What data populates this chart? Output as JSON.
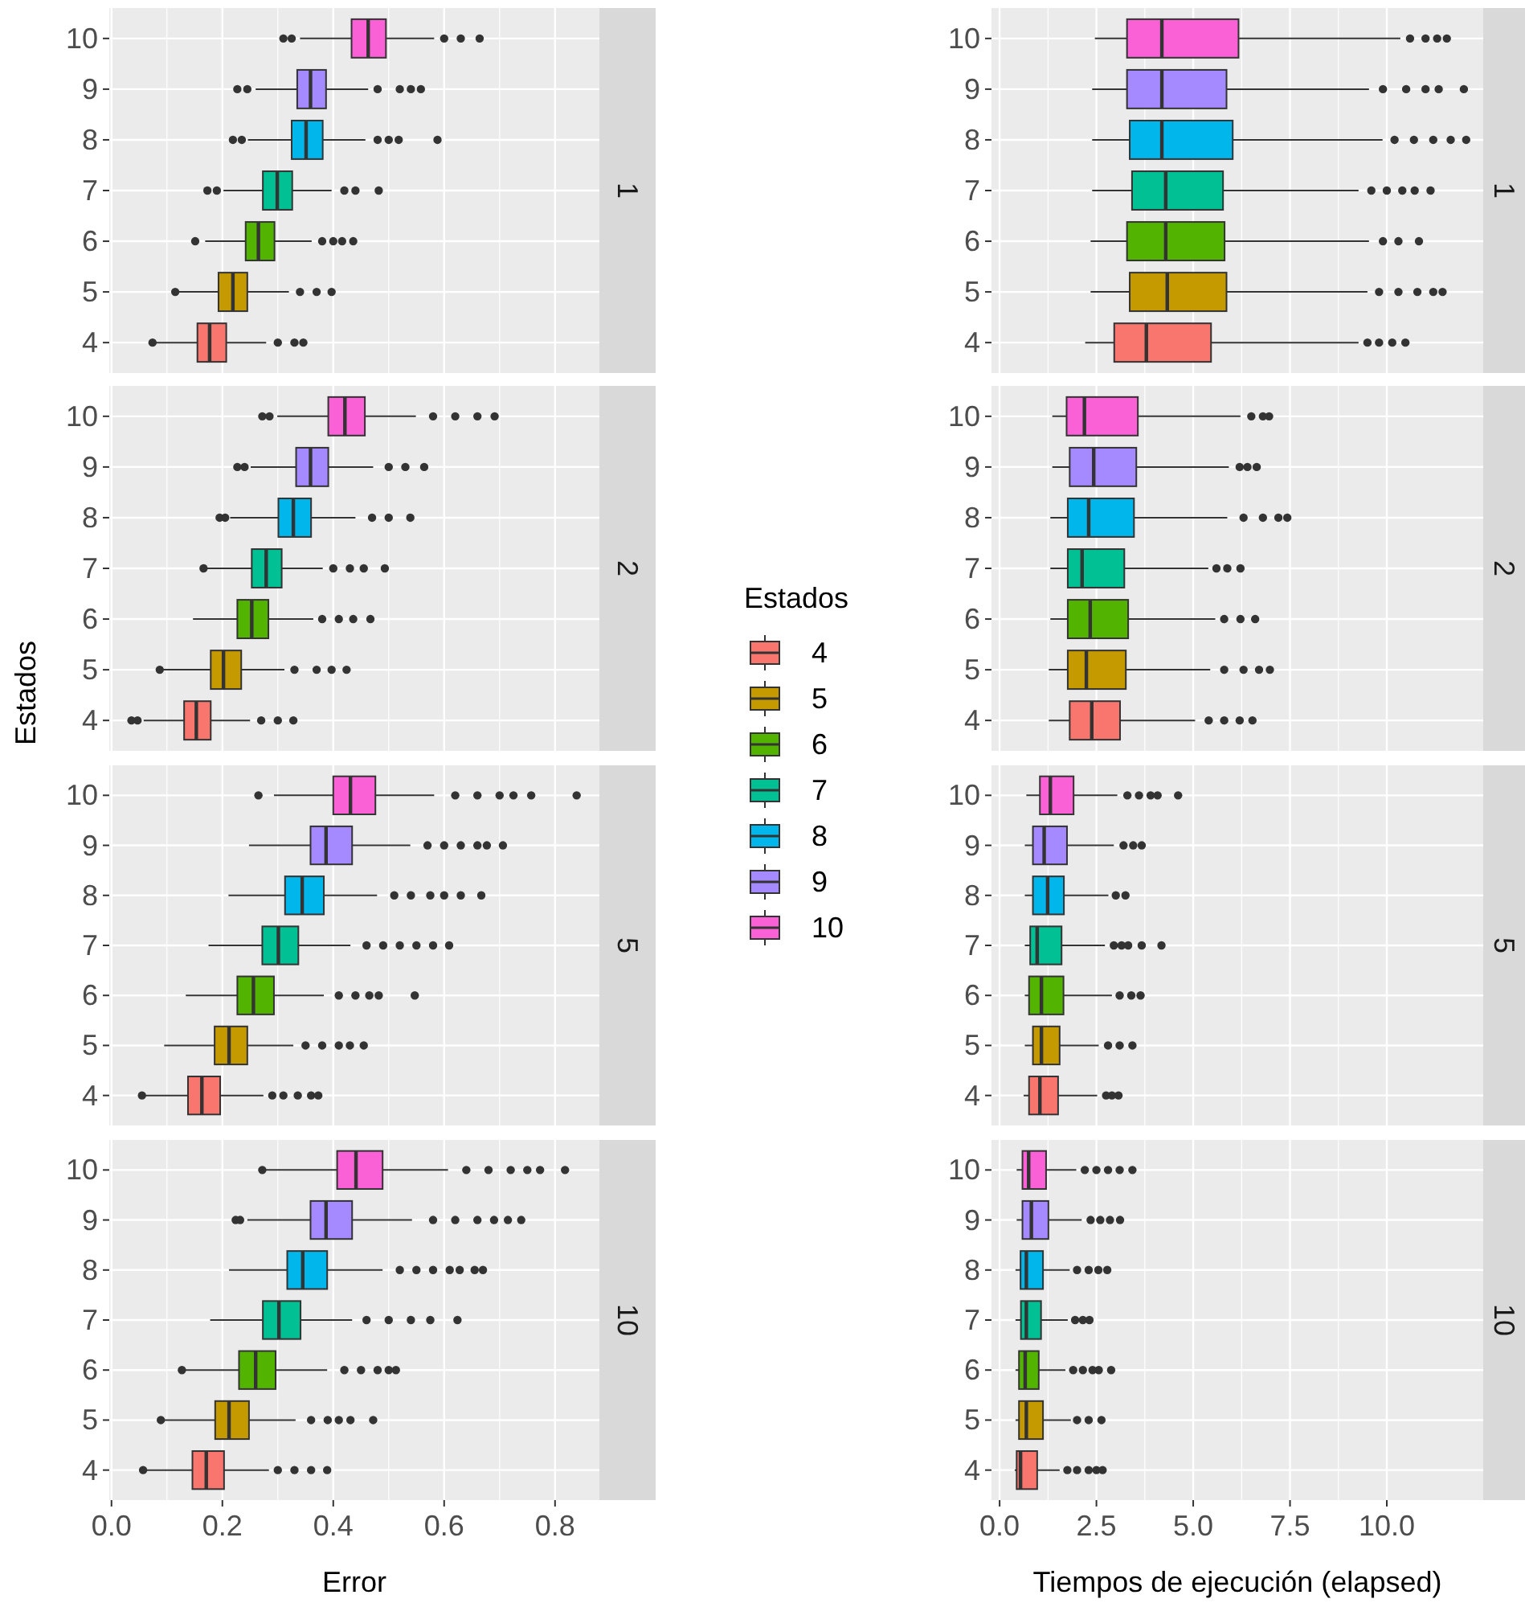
{
  "chart_data": [
    {
      "type": "box",
      "orientation": "horizontal",
      "title": "1",
      "legend": "right",
      "legend_title": "Estados",
      "categories": [
        "10",
        "9",
        "8",
        "7",
        "6",
        "5",
        "4"
      ],
      "xlim": [
        -0.004,
        0.88
      ],
      "xticks": [
        0,
        0.2,
        0.4,
        0.6,
        0.8
      ],
      "grid": true,
      "tick_labels": "y",
      "series": [
        {
          "name": "4",
          "color": "#f8766d",
          "boxes": [
            null,
            null,
            null,
            null,
            null,
            null,
            {
              "low": 0.079,
              "q1": 0.155,
              "median": 0.177,
              "q3": 0.207,
              "high": 0.279,
              "outliers": [
                0.074,
                0.3,
                0.33,
                0.346
              ]
            }
          ]
        },
        {
          "name": "5",
          "color": "#c49a00",
          "boxes": [
            null,
            null,
            null,
            null,
            null,
            {
              "low": 0.122,
              "q1": 0.193,
              "median": 0.219,
              "q3": 0.245,
              "high": 0.32,
              "outliers": [
                0.115,
                0.34,
                0.37,
                0.397
              ]
            },
            null
          ]
        },
        {
          "name": "6",
          "color": "#53b400",
          "boxes": [
            null,
            null,
            null,
            null,
            {
              "low": 0.169,
              "q1": 0.242,
              "median": 0.265,
              "q3": 0.294,
              "high": 0.361,
              "outliers": [
                0.151,
                0.38,
                0.4,
                0.416,
                0.436
              ]
            },
            null,
            null
          ]
        },
        {
          "name": "7",
          "color": "#00c094",
          "boxes": [
            null,
            null,
            null,
            {
              "low": 0.202,
              "q1": 0.273,
              "median": 0.299,
              "q3": 0.326,
              "high": 0.397,
              "outliers": [
                0.173,
                0.19,
                0.42,
                0.44,
                0.482
              ]
            },
            null,
            null,
            null
          ]
        },
        {
          "name": "8",
          "color": "#00b6eb",
          "boxes": [
            null,
            null,
            {
              "low": 0.246,
              "q1": 0.325,
              "median": 0.351,
              "q3": 0.381,
              "high": 0.458,
              "outliers": [
                0.219,
                0.235,
                0.48,
                0.5,
                0.518,
                0.588
              ]
            },
            null,
            null,
            null,
            null
          ]
        },
        {
          "name": "9",
          "color": "#a58aff",
          "boxes": [
            null,
            {
              "low": 0.26,
              "q1": 0.335,
              "median": 0.359,
              "q3": 0.387,
              "high": 0.463,
              "outliers": [
                0.227,
                0.245,
                0.48,
                0.52,
                0.54,
                0.558
              ]
            },
            null,
            null,
            null,
            null,
            null
          ]
        },
        {
          "name": "10",
          "color": "#fb61d7",
          "boxes": [
            {
              "low": 0.34,
              "q1": 0.433,
              "median": 0.463,
              "q3": 0.495,
              "high": 0.582,
              "outliers": [
                0.31,
                0.325,
                0.6,
                0.63,
                0.664
              ]
            },
            null,
            null,
            null,
            null,
            null,
            null
          ]
        }
      ]
    },
    {
      "type": "box",
      "orientation": "horizontal",
      "title": "1",
      "categories": [
        "10",
        "9",
        "8",
        "7",
        "6",
        "5",
        "4"
      ],
      "colors": [
        "#fb61d7",
        "#a58aff",
        "#00b6eb",
        "#00c094",
        "#53b400",
        "#c49a00",
        "#f8766d"
      ],
      "xlim": [
        -0.21,
        12.49
      ],
      "xticks": [
        0,
        2.5,
        5,
        7.5,
        10
      ],
      "grid": true,
      "tick_labels": "y",
      "boxes": [
        {
          "low": 2.46,
          "q1": 3.29,
          "median": 4.19,
          "q3": 6.17,
          "high": 10.35,
          "outliers": [
            10.6,
            11.0,
            11.3,
            11.55
          ]
        },
        {
          "low": 2.39,
          "q1": 3.29,
          "median": 4.19,
          "q3": 5.86,
          "high": 9.54,
          "outliers": [
            9.9,
            10.5,
            11.0,
            11.34,
            11.99
          ]
        },
        {
          "low": 2.39,
          "q1": 3.36,
          "median": 4.19,
          "q3": 6.02,
          "high": 9.89,
          "outliers": [
            10.2,
            10.7,
            11.2,
            11.65,
            12.05
          ]
        },
        {
          "low": 2.39,
          "q1": 3.42,
          "median": 4.29,
          "q3": 5.77,
          "high": 9.27,
          "outliers": [
            9.6,
            10.0,
            10.4,
            10.72,
            11.13
          ]
        },
        {
          "low": 2.35,
          "q1": 3.29,
          "median": 4.29,
          "q3": 5.81,
          "high": 9.54,
          "outliers": [
            9.9,
            10.3,
            10.83
          ]
        },
        {
          "low": 2.35,
          "q1": 3.36,
          "median": 4.33,
          "q3": 5.86,
          "high": 9.5,
          "outliers": [
            9.8,
            10.3,
            10.79,
            11.2,
            11.44
          ]
        },
        {
          "low": 2.21,
          "q1": 2.96,
          "median": 3.79,
          "q3": 5.46,
          "high": 9.27,
          "outliers": [
            9.5,
            9.8,
            10.14,
            10.48
          ]
        }
      ]
    },
    {
      "type": "box",
      "orientation": "horizontal",
      "title": "2",
      "ylabel": "Estados",
      "categories": [
        "10",
        "9",
        "8",
        "7",
        "6",
        "5",
        "4"
      ],
      "colors": [
        "#fb61d7",
        "#a58aff",
        "#00b6eb",
        "#00c094",
        "#53b400",
        "#c49a00",
        "#f8766d"
      ],
      "xlim": [
        -0.004,
        0.88
      ],
      "xticks": [
        0,
        0.2,
        0.4,
        0.6,
        0.8
      ],
      "grid": true,
      "tick_labels": "y",
      "boxes": [
        {
          "low": 0.299,
          "q1": 0.391,
          "median": 0.421,
          "q3": 0.457,
          "high": 0.549,
          "outliers": [
            0.272,
            0.285,
            0.58,
            0.62,
            0.66,
            0.691
          ]
        },
        {
          "low": 0.251,
          "q1": 0.333,
          "median": 0.359,
          "q3": 0.391,
          "high": 0.472,
          "outliers": [
            0.227,
            0.24,
            0.5,
            0.53,
            0.564
          ]
        },
        {
          "low": 0.214,
          "q1": 0.301,
          "median": 0.328,
          "q3": 0.36,
          "high": 0.44,
          "outliers": [
            0.195,
            0.205,
            0.47,
            0.5,
            0.539
          ]
        },
        {
          "low": 0.171,
          "q1": 0.253,
          "median": 0.279,
          "q3": 0.307,
          "high": 0.381,
          "outliers": [
            0.166,
            0.4,
            0.43,
            0.455,
            0.493
          ]
        },
        {
          "low": 0.147,
          "q1": 0.227,
          "median": 0.253,
          "q3": 0.283,
          "high": 0.364,
          "outliers": [
            0.38,
            0.41,
            0.436,
            0.467
          ]
        },
        {
          "low": 0.092,
          "q1": 0.179,
          "median": 0.202,
          "q3": 0.234,
          "high": 0.312,
          "outliers": [
            0.087,
            0.33,
            0.37,
            0.397,
            0.424
          ]
        },
        {
          "low": 0.058,
          "q1": 0.131,
          "median": 0.153,
          "q3": 0.179,
          "high": 0.25,
          "outliers": [
            0.036,
            0.047,
            0.27,
            0.3,
            0.328
          ]
        }
      ]
    },
    {
      "type": "box",
      "orientation": "horizontal",
      "title": "2",
      "categories": [
        "10",
        "9",
        "8",
        "7",
        "6",
        "5",
        "4"
      ],
      "colors": [
        "#fb61d7",
        "#a58aff",
        "#00b6eb",
        "#00c094",
        "#53b400",
        "#c49a00",
        "#f8766d"
      ],
      "xlim": [
        -0.21,
        12.49
      ],
      "xticks": [
        0,
        2.5,
        5,
        7.5,
        10
      ],
      "grid": true,
      "tick_labels": "y",
      "boxes": [
        {
          "low": 1.36,
          "q1": 1.73,
          "median": 2.19,
          "q3": 3.57,
          "high": 6.22,
          "outliers": [
            6.5,
            6.8,
            6.96
          ]
        },
        {
          "low": 1.36,
          "q1": 1.81,
          "median": 2.43,
          "q3": 3.53,
          "high": 5.92,
          "outliers": [
            6.2,
            6.4,
            6.64
          ]
        },
        {
          "low": 1.31,
          "q1": 1.76,
          "median": 2.3,
          "q3": 3.47,
          "high": 5.88,
          "outliers": [
            6.3,
            6.8,
            7.2,
            7.43
          ]
        },
        {
          "low": 1.31,
          "q1": 1.76,
          "median": 2.13,
          "q3": 3.22,
          "high": 5.39,
          "outliers": [
            5.6,
            5.88,
            6.22
          ]
        },
        {
          "low": 1.31,
          "q1": 1.76,
          "median": 2.34,
          "q3": 3.32,
          "high": 5.57,
          "outliers": [
            5.8,
            6.22,
            6.6
          ]
        },
        {
          "low": 1.27,
          "q1": 1.76,
          "median": 2.24,
          "q3": 3.26,
          "high": 5.44,
          "outliers": [
            5.8,
            6.3,
            6.7,
            6.98
          ]
        },
        {
          "low": 1.27,
          "q1": 1.81,
          "median": 2.38,
          "q3": 3.11,
          "high": 5.05,
          "outliers": [
            5.4,
            5.8,
            6.2,
            6.53
          ]
        }
      ]
    },
    {
      "type": "box",
      "orientation": "horizontal",
      "title": "5",
      "categories": [
        "10",
        "9",
        "8",
        "7",
        "6",
        "5",
        "4"
      ],
      "colors": [
        "#fb61d7",
        "#a58aff",
        "#00b6eb",
        "#00c094",
        "#53b400",
        "#c49a00",
        "#f8766d"
      ],
      "xlim": [
        -0.004,
        0.88
      ],
      "xticks": [
        0,
        0.2,
        0.4,
        0.6,
        0.8
      ],
      "grid": true,
      "tick_labels": "y",
      "boxes": [
        {
          "low": 0.293,
          "q1": 0.4,
          "median": 0.431,
          "q3": 0.476,
          "high": 0.582,
          "outliers": [
            0.265,
            0.62,
            0.66,
            0.7,
            0.725,
            0.757,
            0.839
          ]
        },
        {
          "low": 0.248,
          "q1": 0.359,
          "median": 0.387,
          "q3": 0.434,
          "high": 0.539,
          "outliers": [
            0.57,
            0.6,
            0.63,
            0.66,
            0.677,
            0.706
          ]
        },
        {
          "low": 0.211,
          "q1": 0.313,
          "median": 0.344,
          "q3": 0.383,
          "high": 0.479,
          "outliers": [
            0.51,
            0.54,
            0.575,
            0.6,
            0.63,
            0.667
          ]
        },
        {
          "low": 0.175,
          "q1": 0.272,
          "median": 0.301,
          "q3": 0.337,
          "high": 0.431,
          "outliers": [
            0.46,
            0.49,
            0.52,
            0.55,
            0.58,
            0.609
          ]
        },
        {
          "low": 0.134,
          "q1": 0.227,
          "median": 0.256,
          "q3": 0.293,
          "high": 0.383,
          "outliers": [
            0.41,
            0.44,
            0.465,
            0.482,
            0.547
          ]
        },
        {
          "low": 0.095,
          "q1": 0.186,
          "median": 0.212,
          "q3": 0.245,
          "high": 0.328,
          "outliers": [
            0.35,
            0.38,
            0.41,
            0.43,
            0.455
          ]
        },
        {
          "low": 0.06,
          "q1": 0.138,
          "median": 0.163,
          "q3": 0.196,
          "high": 0.274,
          "outliers": [
            0.055,
            0.29,
            0.31,
            0.336,
            0.36,
            0.373
          ]
        }
      ]
    },
    {
      "type": "box",
      "orientation": "horizontal",
      "title": "5",
      "categories": [
        "10",
        "9",
        "8",
        "7",
        "6",
        "5",
        "4"
      ],
      "colors": [
        "#fb61d7",
        "#a58aff",
        "#00b6eb",
        "#00c094",
        "#53b400",
        "#c49a00",
        "#f8766d"
      ],
      "xlim": [
        -0.21,
        12.49
      ],
      "xticks": [
        0,
        2.5,
        5,
        7.5,
        10
      ],
      "grid": true,
      "tick_labels": "y",
      "boxes": [
        {
          "low": 0.69,
          "q1": 1.04,
          "median": 1.31,
          "q3": 1.91,
          "high": 3.04,
          "outliers": [
            3.3,
            3.6,
            3.9,
            4.08,
            4.61
          ]
        },
        {
          "low": 0.65,
          "q1": 0.86,
          "median": 1.15,
          "q3": 1.74,
          "high": 2.95,
          "outliers": [
            3.2,
            3.45,
            3.67
          ]
        },
        {
          "low": 0.65,
          "q1": 0.86,
          "median": 1.24,
          "q3": 1.66,
          "high": 2.81,
          "outliers": [
            3.0,
            3.25
          ]
        },
        {
          "low": 0.65,
          "q1": 0.79,
          "median": 0.97,
          "q3": 1.6,
          "high": 2.72,
          "outliers": [
            2.95,
            3.15,
            3.32,
            3.67,
            4.18
          ]
        },
        {
          "low": 0.65,
          "q1": 0.76,
          "median": 1.08,
          "q3": 1.65,
          "high": 2.9,
          "outliers": [
            3.1,
            3.4,
            3.64
          ]
        },
        {
          "low": 0.65,
          "q1": 0.86,
          "median": 1.08,
          "q3": 1.55,
          "high": 2.56,
          "outliers": [
            2.8,
            3.1,
            3.43
          ]
        },
        {
          "low": 0.62,
          "q1": 0.76,
          "median": 1.04,
          "q3": 1.51,
          "high": 2.52,
          "outliers": [
            2.75,
            2.9,
            3.07
          ]
        }
      ]
    },
    {
      "type": "box",
      "orientation": "horizontal",
      "title": "10",
      "xlabel": "Error",
      "categories": [
        "10",
        "9",
        "8",
        "7",
        "6",
        "5",
        "4"
      ],
      "colors": [
        "#fb61d7",
        "#a58aff",
        "#00b6eb",
        "#00c094",
        "#53b400",
        "#c49a00",
        "#f8766d"
      ],
      "xlim": [
        -0.004,
        0.88
      ],
      "xticks": [
        {
          "value": 0,
          "label": "0.0"
        },
        0.2,
        0.4,
        0.6,
        0.8
      ],
      "grid": true,
      "boxes": [
        {
          "low": 0.277,
          "q1": 0.407,
          "median": 0.441,
          "q3": 0.489,
          "high": 0.607,
          "outliers": [
            0.272,
            0.64,
            0.68,
            0.72,
            0.75,
            0.773,
            0.818
          ]
        },
        {
          "low": 0.245,
          "q1": 0.359,
          "median": 0.387,
          "q3": 0.434,
          "high": 0.542,
          "outliers": [
            0.224,
            0.232,
            0.58,
            0.62,
            0.66,
            0.69,
            0.715,
            0.739
          ]
        },
        {
          "low": 0.212,
          "q1": 0.317,
          "median": 0.345,
          "q3": 0.389,
          "high": 0.489,
          "outliers": [
            0.52,
            0.55,
            0.58,
            0.61,
            0.628,
            0.655,
            0.67
          ]
        },
        {
          "low": 0.178,
          "q1": 0.273,
          "median": 0.302,
          "q3": 0.341,
          "high": 0.434,
          "outliers": [
            0.46,
            0.5,
            0.54,
            0.575,
            0.624
          ]
        },
        {
          "low": 0.132,
          "q1": 0.23,
          "median": 0.26,
          "q3": 0.296,
          "high": 0.389,
          "outliers": [
            0.127,
            0.42,
            0.45,
            0.48,
            0.5,
            0.513
          ]
        },
        {
          "low": 0.093,
          "q1": 0.187,
          "median": 0.212,
          "q3": 0.248,
          "high": 0.332,
          "outliers": [
            0.089,
            0.36,
            0.39,
            0.41,
            0.431,
            0.472
          ]
        },
        {
          "low": 0.062,
          "q1": 0.146,
          "median": 0.171,
          "q3": 0.203,
          "high": 0.284,
          "outliers": [
            0.057,
            0.3,
            0.33,
            0.36,
            0.389
          ]
        }
      ]
    },
    {
      "type": "box",
      "orientation": "horizontal",
      "title": "10",
      "xlabel": "Tiempos de ejecución (elapsed)",
      "categories": [
        "10",
        "9",
        "8",
        "7",
        "6",
        "5",
        "4"
      ],
      "colors": [
        "#fb61d7",
        "#a58aff",
        "#00b6eb",
        "#00c094",
        "#53b400",
        "#c49a00",
        "#f8766d"
      ],
      "xlim": [
        -0.21,
        12.49
      ],
      "xticks": [
        {
          "value": 0,
          "label": "0.0"
        },
        2.5,
        {
          "value": 5,
          "label": "5.0"
        },
        7.5,
        {
          "value": 10,
          "label": "10.0"
        }
      ],
      "grid": true,
      "boxes": [
        {
          "low": 0.44,
          "q1": 0.59,
          "median": 0.75,
          "q3": 1.2,
          "high": 1.98,
          "outliers": [
            2.2,
            2.5,
            2.8,
            3.1,
            3.43
          ]
        },
        {
          "low": 0.44,
          "q1": 0.59,
          "median": 0.82,
          "q3": 1.26,
          "high": 2.12,
          "outliers": [
            2.35,
            2.6,
            2.85,
            3.11
          ]
        },
        {
          "low": 0.41,
          "q1": 0.54,
          "median": 0.69,
          "q3": 1.12,
          "high": 1.81,
          "outliers": [
            2.0,
            2.3,
            2.55,
            2.78
          ]
        },
        {
          "low": 0.41,
          "q1": 0.55,
          "median": 0.69,
          "q3": 1.07,
          "high": 1.76,
          "outliers": [
            1.95,
            2.15,
            2.32
          ]
        },
        {
          "low": 0.41,
          "q1": 0.5,
          "median": 0.66,
          "q3": 1.01,
          "high": 1.7,
          "outliers": [
            1.9,
            2.15,
            2.4,
            2.56,
            2.88
          ]
        },
        {
          "low": 0.41,
          "q1": 0.5,
          "median": 0.69,
          "q3": 1.12,
          "high": 1.84,
          "outliers": [
            2.0,
            2.3,
            2.63
          ]
        },
        {
          "low": 0.39,
          "q1": 0.44,
          "median": 0.54,
          "q3": 0.97,
          "high": 1.55,
          "outliers": [
            1.75,
            2.0,
            2.3,
            2.5,
            2.66
          ]
        }
      ]
    }
  ]
}
